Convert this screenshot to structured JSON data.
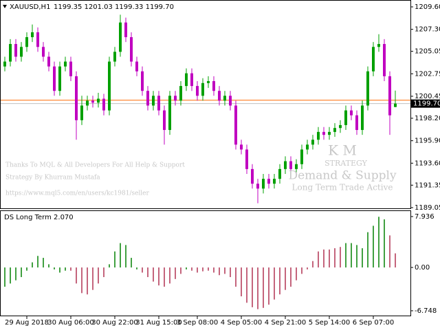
{
  "chart_data": [
    {
      "type": "candlestick",
      "title": "XAUUSD,H1",
      "quote": "1199.35 1201.03 1199.33 1199.70",
      "up_color": "#00a000",
      "down_color": "#c000c0",
      "categories": [
        null,
        null,
        null,
        null,
        "29 Aug 2018",
        null,
        null,
        null,
        null,
        null,
        null,
        null,
        "30 Aug 06:00",
        null,
        null,
        null,
        null,
        null,
        null,
        null,
        "30 Aug 22:00",
        null,
        null,
        null,
        null,
        null,
        null,
        null,
        "31 Aug 15:00",
        null,
        null,
        null,
        null,
        null,
        null,
        "3 Sep 08:00",
        null,
        null,
        null,
        null,
        null,
        null,
        null,
        "4 Sep 05:00",
        null,
        null,
        null,
        null,
        null,
        null,
        null,
        "4 Sep 21:00",
        null,
        null,
        null,
        null,
        null,
        null,
        null,
        "5 Sep 14:00",
        null,
        null,
        null,
        null,
        null,
        null,
        null,
        "6 Sep 07:00",
        null,
        null,
        null,
        null
      ],
      "open": [
        1203.5,
        1204.0,
        1205.8,
        1204.5,
        1205.5,
        1206.5,
        1207.0,
        1205.5,
        1204.5,
        1203.5,
        1201.0,
        1203.5,
        1204.0,
        1202.5,
        1198.0,
        1199.5,
        1200.0,
        1199.8,
        1200.2,
        1199.0,
        1204.0,
        1205.0,
        1208.0,
        1206.5,
        1204.0,
        1203.0,
        1201.0,
        1199.5,
        1200.5,
        1199.0,
        1197.0,
        1200.5,
        1200.0,
        1201.5,
        1202.8,
        1201.5,
        1200.5,
        1201.8,
        1202.0,
        1201.0,
        1200.0,
        1200.5,
        1199.5,
        1195.5,
        1195.0,
        1193.0,
        1191.5,
        1191.0,
        1192.0,
        1191.5,
        1192.0,
        1193.0,
        1193.8,
        1193.0,
        1193.5,
        1195.0,
        1195.5,
        1196.0,
        1196.8,
        1196.5,
        1196.8,
        1197.2,
        1197.5,
        1199.0,
        1198.5,
        1197.0,
        1199.5,
        1203.0,
        1205.5,
        1205.8,
        1202.5,
        1199.35
      ],
      "high": [
        1204.5,
        1206.3,
        1206.3,
        1206.0,
        1207.0,
        1207.8,
        1207.5,
        1206.0,
        1205.0,
        1204.0,
        1204.0,
        1204.5,
        1204.5,
        1203.0,
        1200.5,
        1200.5,
        1200.5,
        1200.8,
        1200.7,
        1204.5,
        1205.5,
        1208.8,
        1208.5,
        1207.0,
        1204.5,
        1203.5,
        1201.5,
        1201.0,
        1201.0,
        1199.5,
        1201.0,
        1201.0,
        1202.0,
        1203.3,
        1203.3,
        1202.0,
        1202.3,
        1202.5,
        1202.5,
        1201.5,
        1201.0,
        1201.0,
        1200.0,
        1196.0,
        1195.5,
        1193.5,
        1192.0,
        1192.5,
        1192.5,
        1192.5,
        1193.5,
        1194.3,
        1194.3,
        1194.0,
        1195.5,
        1196.0,
        1196.5,
        1197.3,
        1197.3,
        1197.3,
        1197.7,
        1198.0,
        1199.5,
        1199.5,
        1199.0,
        1200.0,
        1203.5,
        1206.0,
        1206.8,
        1206.3,
        1203.0,
        1201.03
      ],
      "low": [
        1203.0,
        1203.5,
        1204.0,
        1204.0,
        1205.0,
        1206.0,
        1205.0,
        1204.0,
        1203.0,
        1200.5,
        1200.5,
        1203.0,
        1202.0,
        1196.0,
        1197.5,
        1199.0,
        1199.3,
        1199.3,
        1198.5,
        1198.5,
        1203.5,
        1204.5,
        1206.0,
        1203.5,
        1202.5,
        1200.5,
        1199.0,
        1199.0,
        1198.5,
        1195.5,
        1196.5,
        1199.5,
        1199.5,
        1201.0,
        1201.0,
        1200.0,
        1200.0,
        1201.3,
        1200.5,
        1199.5,
        1199.5,
        1199.0,
        1195.0,
        1194.5,
        1192.5,
        1191.0,
        1189.5,
        1190.5,
        1191.0,
        1191.0,
        1191.5,
        1192.5,
        1192.5,
        1192.5,
        1193.0,
        1194.5,
        1195.0,
        1195.5,
        1196.0,
        1196.0,
        1196.3,
        1196.7,
        1197.0,
        1198.0,
        1196.5,
        1196.5,
        1199.0,
        1202.5,
        1205.0,
        1202.0,
        1196.5,
        1199.33
      ],
      "close": [
        1204.0,
        1205.8,
        1204.5,
        1205.5,
        1206.5,
        1207.0,
        1205.5,
        1204.5,
        1203.5,
        1201.0,
        1203.5,
        1204.0,
        1202.5,
        1198.0,
        1199.5,
        1200.0,
        1199.8,
        1200.2,
        1199.0,
        1204.0,
        1205.0,
        1208.0,
        1206.5,
        1204.0,
        1203.0,
        1201.0,
        1199.5,
        1200.5,
        1199.0,
        1197.0,
        1200.5,
        1200.0,
        1201.5,
        1202.8,
        1201.5,
        1200.5,
        1201.8,
        1202.0,
        1201.0,
        1200.0,
        1200.5,
        1199.5,
        1195.5,
        1195.0,
        1193.0,
        1191.5,
        1191.0,
        1192.0,
        1191.5,
        1192.0,
        1193.0,
        1193.8,
        1193.0,
        1193.5,
        1195.0,
        1195.5,
        1196.0,
        1196.8,
        1196.5,
        1196.8,
        1197.2,
        1197.5,
        1199.0,
        1198.5,
        1197.0,
        1199.5,
        1203.0,
        1205.5,
        1205.8,
        1202.5,
        1198.5,
        1199.7
      ],
      "ylim": [
        1189.05,
        1209.6
      ],
      "yticks": [
        {
          "value": 1209.6,
          "label": "1209.60"
        },
        {
          "value": 1207.3,
          "label": "1207.30"
        },
        1205.05,
        1202.75,
        1200.45,
        {
          "value": 1198.2,
          "label": "1198.20"
        },
        {
          "value": 1195.9,
          "label": "1195.90"
        },
        {
          "value": 1193.6,
          "label": "1193.60"
        },
        1191.35,
        1189.05
      ],
      "level_line": {
        "value": 1200.05,
        "color": "#ff6a00"
      },
      "price_line": {
        "value": 1199.7,
        "label": "1199.70"
      },
      "annotations": [
        {
          "text": "Thanks To MQL & All Developers For All Help & Support",
          "color": "#c8c8c8"
        },
        {
          "text": "Strategy By Khurram Mustafa",
          "color": "#c8c8c8"
        },
        {
          "text": "https://www.mql5.com/en/users/kc1981/seller",
          "color": "#c8c8c8"
        },
        {
          "text": "K M",
          "color": "#c8c8c8"
        },
        {
          "text": "STRATEGY",
          "color": "#c8c8c8"
        },
        {
          "text": "Demand & Supply",
          "color": "#c8c8c8"
        },
        {
          "text": "Long Term Trade Active",
          "color": "#c8c8c8"
        }
      ]
    },
    {
      "type": "bar",
      "title": "DS Long Term 2.070",
      "ylim": [
        -6.748,
        7.936
      ],
      "yticks": [
        7.936,
        {
          "value": 0,
          "label": "0.00"
        },
        -6.748
      ],
      "series": [
        {
          "color": "#008000",
          "values": [
            -3.0,
            -2.5,
            -2.0,
            -1.5,
            -0.5,
            0.8,
            1.8,
            1.5,
            0.5,
            -0.3,
            -0.8,
            -0.5,
            null,
            null,
            null,
            null,
            null,
            null,
            null,
            0.5,
            2.5,
            3.8,
            3.5,
            1.5,
            -0.3,
            null,
            null,
            null,
            null,
            null,
            null,
            null,
            null,
            -0.3,
            null,
            null,
            null,
            null,
            null,
            null,
            null,
            null,
            null,
            null,
            null,
            null,
            null,
            null,
            null,
            null,
            null,
            null,
            null,
            null,
            null,
            null,
            null,
            null,
            null,
            null,
            null,
            null,
            3.8,
            3.8,
            3.5,
            3.0,
            5.5,
            6.5,
            7.9,
            7.5,
            null,
            null
          ]
        },
        {
          "color": "#b03050",
          "values": [
            null,
            null,
            null,
            null,
            null,
            null,
            null,
            null,
            null,
            null,
            null,
            null,
            -0.5,
            -2.5,
            -4.0,
            -4.2,
            -3.5,
            -2.5,
            -1.5,
            null,
            null,
            null,
            null,
            null,
            null,
            -0.8,
            -1.5,
            -2.2,
            -2.8,
            -3.0,
            -2.5,
            -1.8,
            -1.0,
            null,
            -0.5,
            -0.8,
            -0.6,
            -0.5,
            -0.8,
            -1.2,
            -1.0,
            -1.5,
            -3.0,
            -4.5,
            -5.5,
            -6.2,
            -6.5,
            -6.3,
            -5.8,
            -5.0,
            -4.2,
            -3.5,
            -3.0,
            -2.0,
            -1.0,
            -0.3,
            1.0,
            2.5,
            2.8,
            2.8,
            3.0,
            3.2,
            null,
            null,
            null,
            null,
            null,
            null,
            null,
            null,
            5.0,
            2.2
          ]
        }
      ]
    }
  ]
}
